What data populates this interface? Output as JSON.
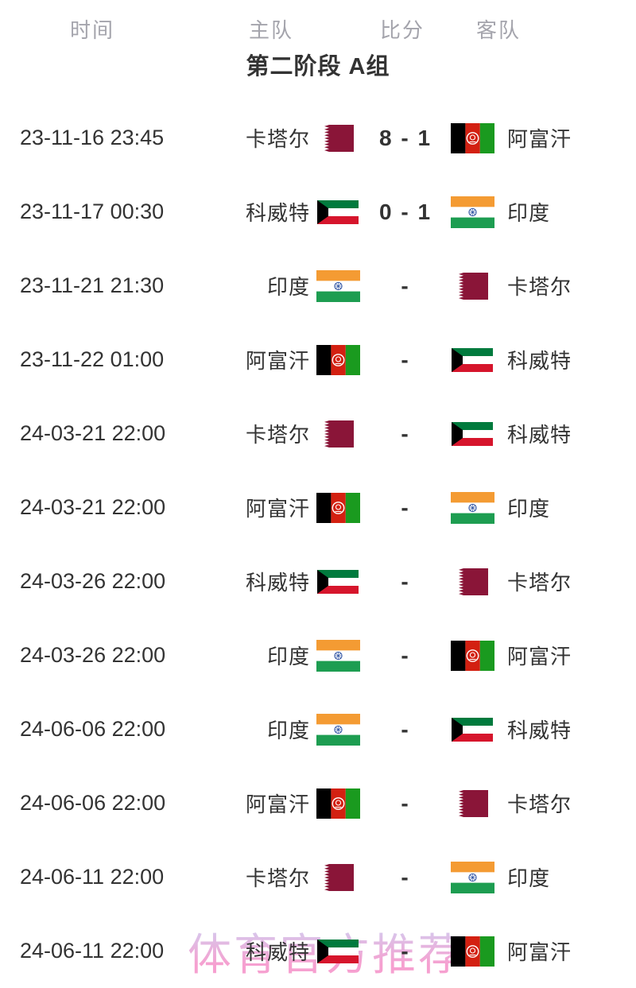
{
  "table_header": {
    "time": "时间",
    "home": "主队",
    "score": "比分",
    "away": "客队"
  },
  "group_title": "第二阶段 A组",
  "watermark": "体育官方推荐",
  "matches": [
    {
      "time": "23-11-16 23:45",
      "home_team": "卡塔尔",
      "home_flag": "qatar-flag",
      "score": "8 - 1",
      "away_team": "阿富汗",
      "away_flag": "afghanistan-flag"
    },
    {
      "time": "23-11-17 00:30",
      "home_team": "科威特",
      "home_flag": "kuwait-flag",
      "score": "0 - 1",
      "away_team": "印度",
      "away_flag": "india-flag"
    },
    {
      "time": "23-11-21 21:30",
      "home_team": "印度",
      "home_flag": "india-flag",
      "score": "-",
      "away_team": "卡塔尔",
      "away_flag": "qatar-flag"
    },
    {
      "time": "23-11-22 01:00",
      "home_team": "阿富汗",
      "home_flag": "afghanistan-flag",
      "score": "-",
      "away_team": "科威特",
      "away_flag": "kuwait-flag"
    },
    {
      "time": "24-03-21 22:00",
      "home_team": "卡塔尔",
      "home_flag": "qatar-flag",
      "score": "-",
      "away_team": "科威特",
      "away_flag": "kuwait-flag"
    },
    {
      "time": "24-03-21 22:00",
      "home_team": "阿富汗",
      "home_flag": "afghanistan-flag",
      "score": "-",
      "away_team": "印度",
      "away_flag": "india-flag"
    },
    {
      "time": "24-03-26 22:00",
      "home_team": "科威特",
      "home_flag": "kuwait-flag",
      "score": "-",
      "away_team": "卡塔尔",
      "away_flag": "qatar-flag"
    },
    {
      "time": "24-03-26 22:00",
      "home_team": "印度",
      "home_flag": "india-flag",
      "score": "-",
      "away_team": "阿富汗",
      "away_flag": "afghanistan-flag"
    },
    {
      "time": "24-06-06 22:00",
      "home_team": "印度",
      "home_flag": "india-flag",
      "score": "-",
      "away_team": "科威特",
      "away_flag": "kuwait-flag"
    },
    {
      "time": "24-06-06 22:00",
      "home_team": "阿富汗",
      "home_flag": "afghanistan-flag",
      "score": "-",
      "away_team": "卡塔尔",
      "away_flag": "qatar-flag"
    },
    {
      "time": "24-06-11 22:00",
      "home_team": "卡塔尔",
      "home_flag": "qatar-flag",
      "score": "-",
      "away_team": "印度",
      "away_flag": "india-flag"
    },
    {
      "time": "24-06-11 22:00",
      "home_team": "科威特",
      "home_flag": "kuwait-flag",
      "score": "-",
      "away_team": "阿富汗",
      "away_flag": "afghanistan-flag"
    }
  ],
  "colors": {
    "body_text": "#333333",
    "header_text": "#a4a4ac",
    "watermark_pink": "#f590c8",
    "watermark_lavender": "#c9c7f0",
    "qatar_maroon": "#8a1538",
    "afghan_red": "#d32011",
    "afghan_green": "#1a9a1f",
    "kuwait_green": "#007a3d",
    "kuwait_red": "#d6152c",
    "india_saffron": "#f49b33",
    "india_green": "#1d9d51",
    "india_navy": "#2a4fa0"
  }
}
